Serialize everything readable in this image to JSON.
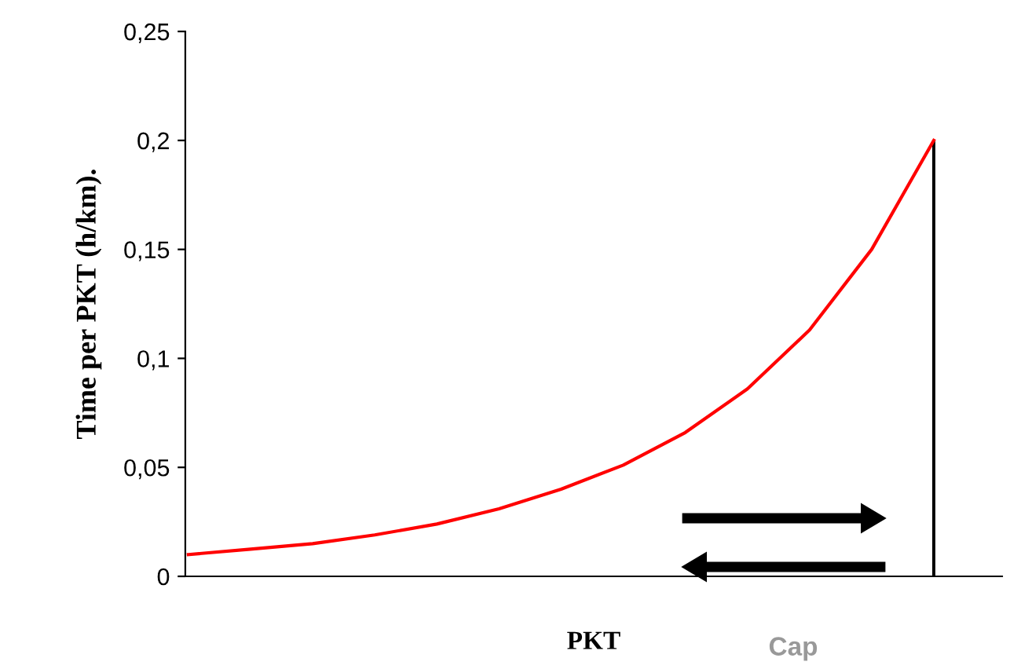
{
  "chart_data": {
    "type": "line",
    "ylabel": "Time per PKT (h/km).",
    "xlabel": "PKT",
    "categories": [
      null,
      null,
      null,
      null,
      null,
      null,
      null,
      null,
      null,
      null,
      null,
      null,
      null
    ],
    "series": [
      {
        "color": "#ff0000",
        "values": [
          0.01,
          0.0125,
          0.015,
          0.019,
          0.024,
          0.031,
          0.04,
          0.051,
          0.066,
          0.086,
          0.113,
          0.15,
          0.2
        ]
      },
      {
        "type": "bar",
        "color": "#000000",
        "values": [
          null,
          null,
          null,
          null,
          null,
          null,
          null,
          null,
          null,
          null,
          null,
          null,
          0.2
        ]
      }
    ],
    "ylim": [
      0,
      0.25
    ],
    "yticks": [
      {
        "value": 0,
        "label": "0"
      },
      {
        "value": 0.05,
        "label": "0,05"
      },
      {
        "value": 0.1,
        "label": "0,1"
      },
      {
        "value": 0.15,
        "label": "0,15"
      },
      {
        "value": 0.2,
        "label": "0,2"
      },
      {
        "value": 0.25,
        "label": "0,25"
      }
    ],
    "tick_labels": "y",
    "grid": false,
    "legend": false,
    "marker": "none",
    "line_style": "solid",
    "annotations": [
      "Cap"
    ]
  }
}
